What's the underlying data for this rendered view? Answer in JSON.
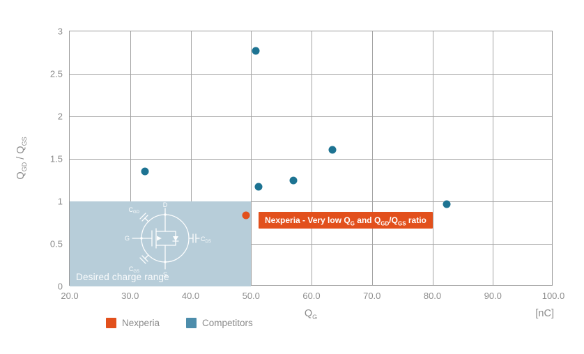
{
  "chart_data": {
    "type": "scatter",
    "xlabel": "QG",
    "x_unit": "[nC]",
    "ylabel": "QGD / QGS",
    "xlabel_parts": {
      "base": "Q",
      "sub": "G"
    },
    "ylabel_parts": {
      "p1": "Q",
      "s1": "GD",
      "p2": " / Q",
      "s2": "GS"
    },
    "xlim": [
      20,
      100
    ],
    "ylim": [
      0,
      3
    ],
    "grid": true,
    "x_ticks": [
      {
        "value": 20,
        "label": "20.0"
      },
      {
        "value": 30,
        "label": "30.0"
      },
      {
        "value": 40,
        "label": "40.0"
      },
      {
        "value": 50,
        "label": "50.0"
      },
      {
        "value": 60,
        "label": "60.0"
      },
      {
        "value": 70,
        "label": "70.0"
      },
      {
        "value": 80,
        "label": "80.0"
      },
      {
        "value": 90,
        "label": "90.0"
      },
      {
        "value": 100,
        "label": "100.0"
      }
    ],
    "y_ticks": [
      {
        "value": 0,
        "label": "0"
      },
      {
        "value": 0.5,
        "label": "0.5"
      },
      {
        "value": 1,
        "label": "1"
      },
      {
        "value": 1.5,
        "label": "1.5"
      },
      {
        "value": 2,
        "label": "2"
      },
      {
        "value": 2.5,
        "label": "2.5"
      },
      {
        "value": 3,
        "label": "3"
      }
    ],
    "series": [
      {
        "name": "Nexperia",
        "color": "#e2501c",
        "points": [
          [
            49.2,
            0.84
          ]
        ]
      },
      {
        "name": "Competitors",
        "color": "#1d7392",
        "points": [
          [
            32.4,
            1.35
          ],
          [
            50.8,
            2.77
          ],
          [
            51.2,
            1.17
          ],
          [
            57.0,
            1.25
          ],
          [
            63.5,
            1.61
          ],
          [
            82.4,
            0.97
          ]
        ]
      }
    ],
    "desired_region": {
      "x_min": 20,
      "x_max": 50,
      "y_min": 0,
      "y_max": 1,
      "color": "#b7cdd9",
      "label": "Desired charge range"
    },
    "annotation": {
      "text": "Nexperia - Very low QG and QGD/QGS ratio",
      "parts": {
        "p1": "Nexperia - Very low Q",
        "s1": "G",
        "p2": " and Q",
        "s2": "GD",
        "p3": "/Q",
        "s3": "GS",
        "p4": " ratio"
      },
      "bg": "#e2501c",
      "text_color": "#ffffff"
    }
  },
  "legend": {
    "items": [
      {
        "label": "Nexperia",
        "color": "#e2501c"
      },
      {
        "label": "Competitors",
        "color": "#4d8dab"
      }
    ]
  },
  "diagram": {
    "d_label": "D",
    "g_label": "G",
    "s_label": "S",
    "cgd_base": "C",
    "cgd_sub": "GD",
    "cgs_base": "C",
    "cgs_sub": "GS",
    "cds_base": "C",
    "cds_sub": "DS"
  }
}
